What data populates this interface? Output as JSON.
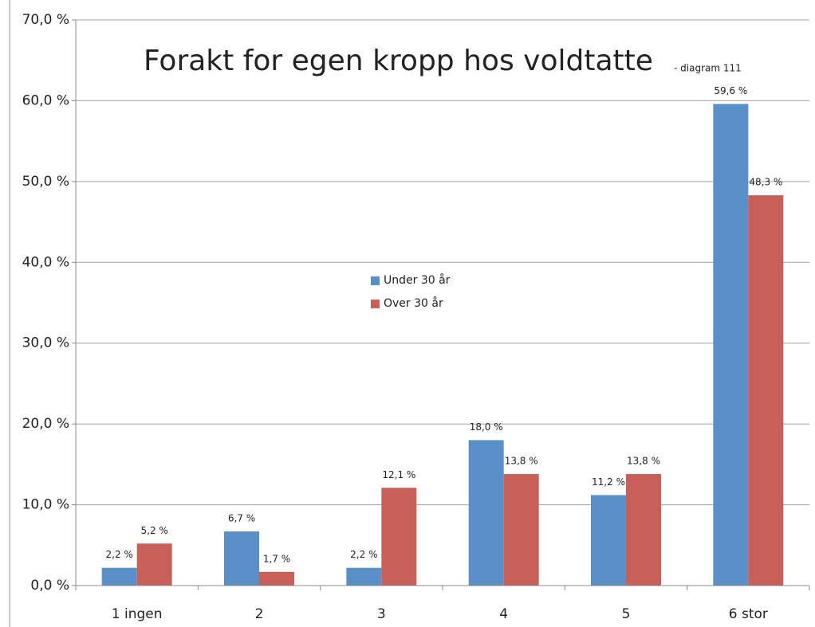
{
  "chart_data": {
    "type": "bar",
    "title": "Forakt for egen kropp hos voldtatte",
    "subtitle": "- diagram 111",
    "categories": [
      "1 ingen",
      "2",
      "3",
      "4",
      "5",
      "6 stor"
    ],
    "series": [
      {
        "name": "Under 30 år",
        "color": "#5b8fc7",
        "values": [
          2.2,
          6.7,
          2.2,
          18.0,
          11.2,
          59.6
        ],
        "value_labels": [
          "2,2 %",
          "6,7 %",
          "2,2 %",
          "18,0 %",
          "11,2 %",
          "59,6 %"
        ]
      },
      {
        "name": "Over 30 år",
        "color": "#c8605a",
        "values": [
          5.2,
          1.7,
          12.1,
          13.8,
          13.8,
          48.3
        ],
        "value_labels": [
          "5,2 %",
          "1,7 %",
          "12,1 %",
          "13,8 %",
          "13,8 %",
          "48,3 %"
        ]
      }
    ],
    "ylim": [
      0,
      70
    ],
    "yticks": [
      {
        "value": 0,
        "label": "0,0 %"
      },
      {
        "value": 10,
        "label": "10,0 %"
      },
      {
        "value": 20,
        "label": "20,0 %"
      },
      {
        "value": 30,
        "label": "30,0 %"
      },
      {
        "value": 40,
        "label": "40,0 %"
      },
      {
        "value": 50,
        "label": "50,0 %"
      },
      {
        "value": 60,
        "label": "60,0 %"
      },
      {
        "value": 70,
        "label": "70,0 %"
      }
    ],
    "grid": true
  }
}
